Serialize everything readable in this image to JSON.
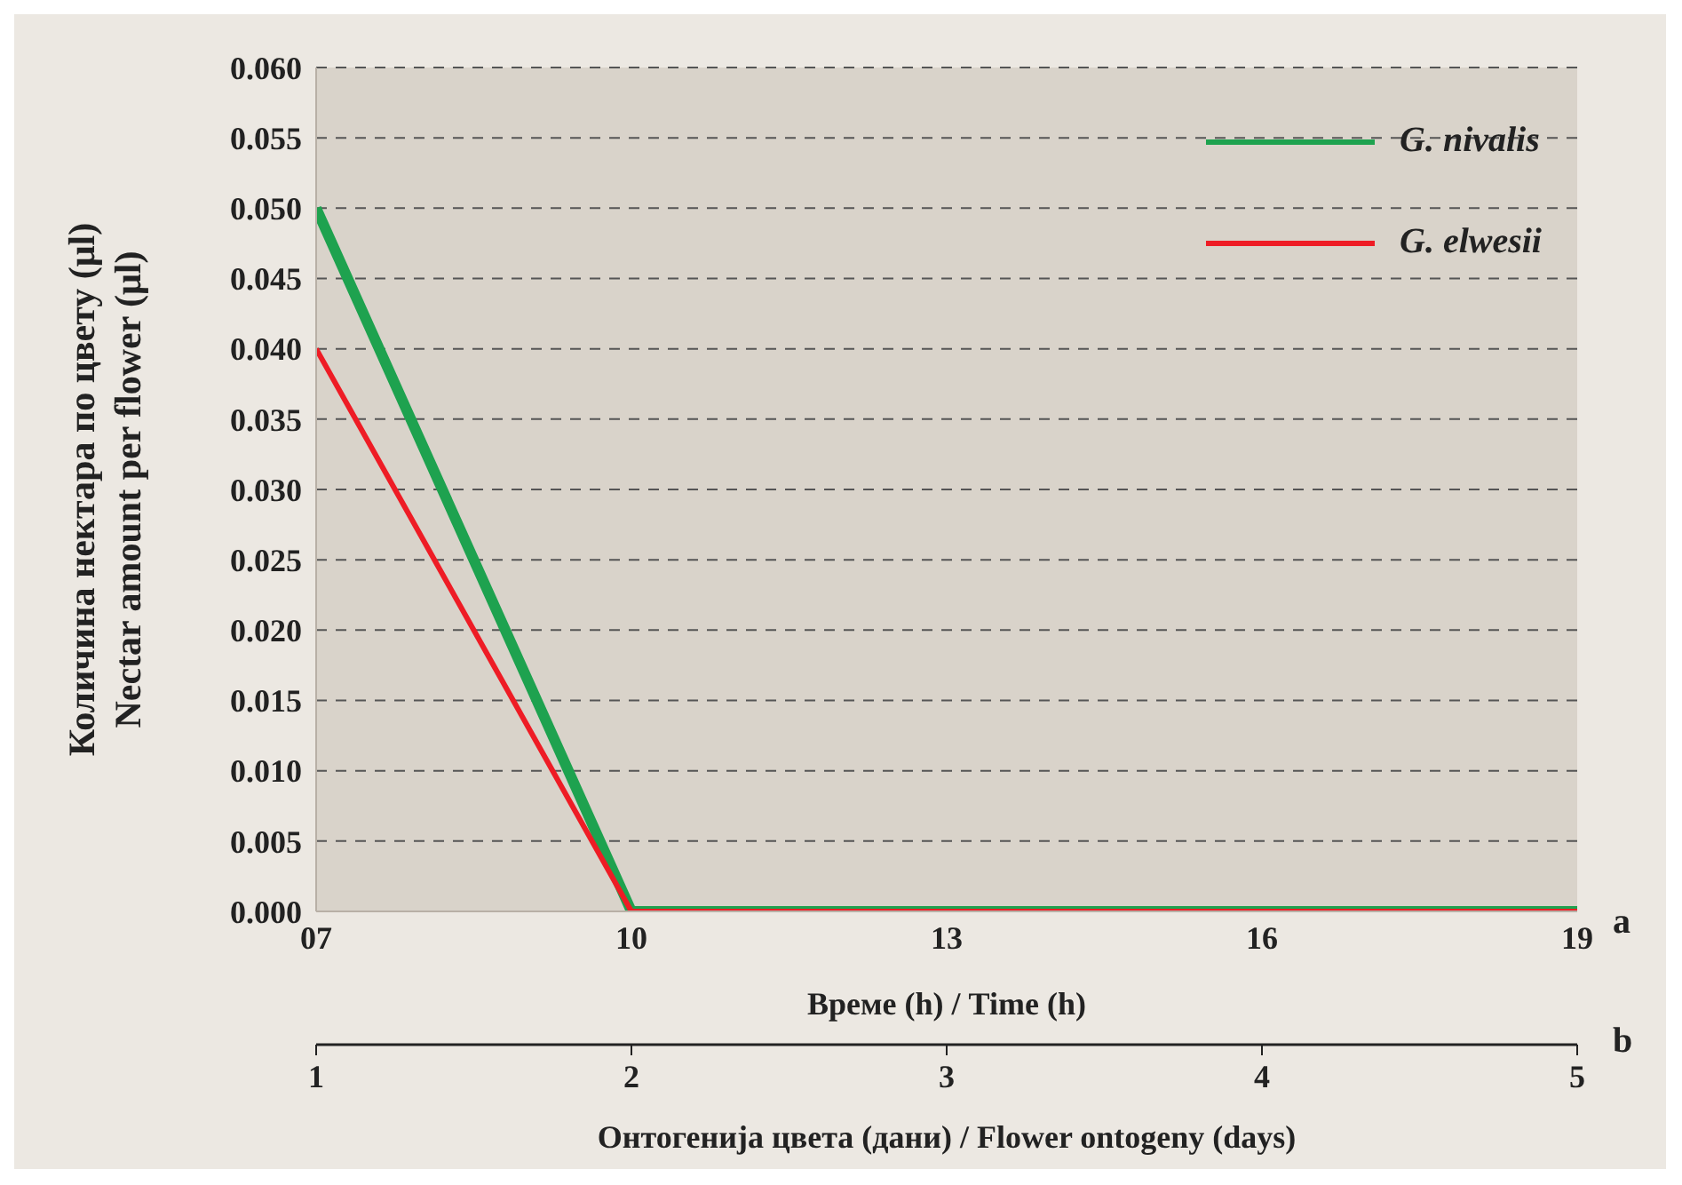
{
  "chart_data": {
    "type": "line",
    "ylabel": "Количина нектара по цвету (μl)\nNectar amount per flower (μl)",
    "xlabel": "Време (h) / Time (h)",
    "x2label": "Онтогенија цвета (дани) / Flower ontogeny (days)",
    "x": [
      7,
      10,
      13,
      16,
      19
    ],
    "series": [
      {
        "name": "G. nivalis",
        "color": "#1ea24f",
        "values": [
          0.05,
          0,
          0,
          0,
          0
        ]
      },
      {
        "name": "G. elwesii",
        "color": "#ee1c25",
        "values": [
          0.04,
          0,
          0,
          0,
          0
        ]
      }
    ],
    "xlim": [
      7,
      19
    ],
    "xticks": [
      {
        "value": 7,
        "label": "07"
      },
      10,
      13,
      16,
      19
    ],
    "x2lim": [
      1,
      5
    ],
    "x2ticks": [
      1,
      2,
      3,
      4,
      5
    ],
    "ylim": [
      0,
      0.06
    ],
    "yticks": [
      {
        "value": 0,
        "label": "0.000"
      },
      {
        "value": 0.005,
        "label": "0.005"
      },
      {
        "value": 0.01,
        "label": "0.010"
      },
      {
        "value": 0.015,
        "label": "0.015"
      },
      {
        "value": 0.02,
        "label": "0.020"
      },
      {
        "value": 0.025,
        "label": "0.025"
      },
      {
        "value": 0.03,
        "label": "0.030"
      },
      {
        "value": 0.035,
        "label": "0.035"
      },
      {
        "value": 0.04,
        "label": "0.040"
      },
      {
        "value": 0.045,
        "label": "0.045"
      },
      {
        "value": 0.05,
        "label": "0.050"
      },
      {
        "value": 0.055,
        "label": "0.055"
      },
      {
        "value": 0.06,
        "label": "0.060"
      }
    ],
    "annotations": [
      "a",
      "b"
    ],
    "grid": "y",
    "legend": "top right",
    "marker": "none",
    "line_style": "solid"
  }
}
